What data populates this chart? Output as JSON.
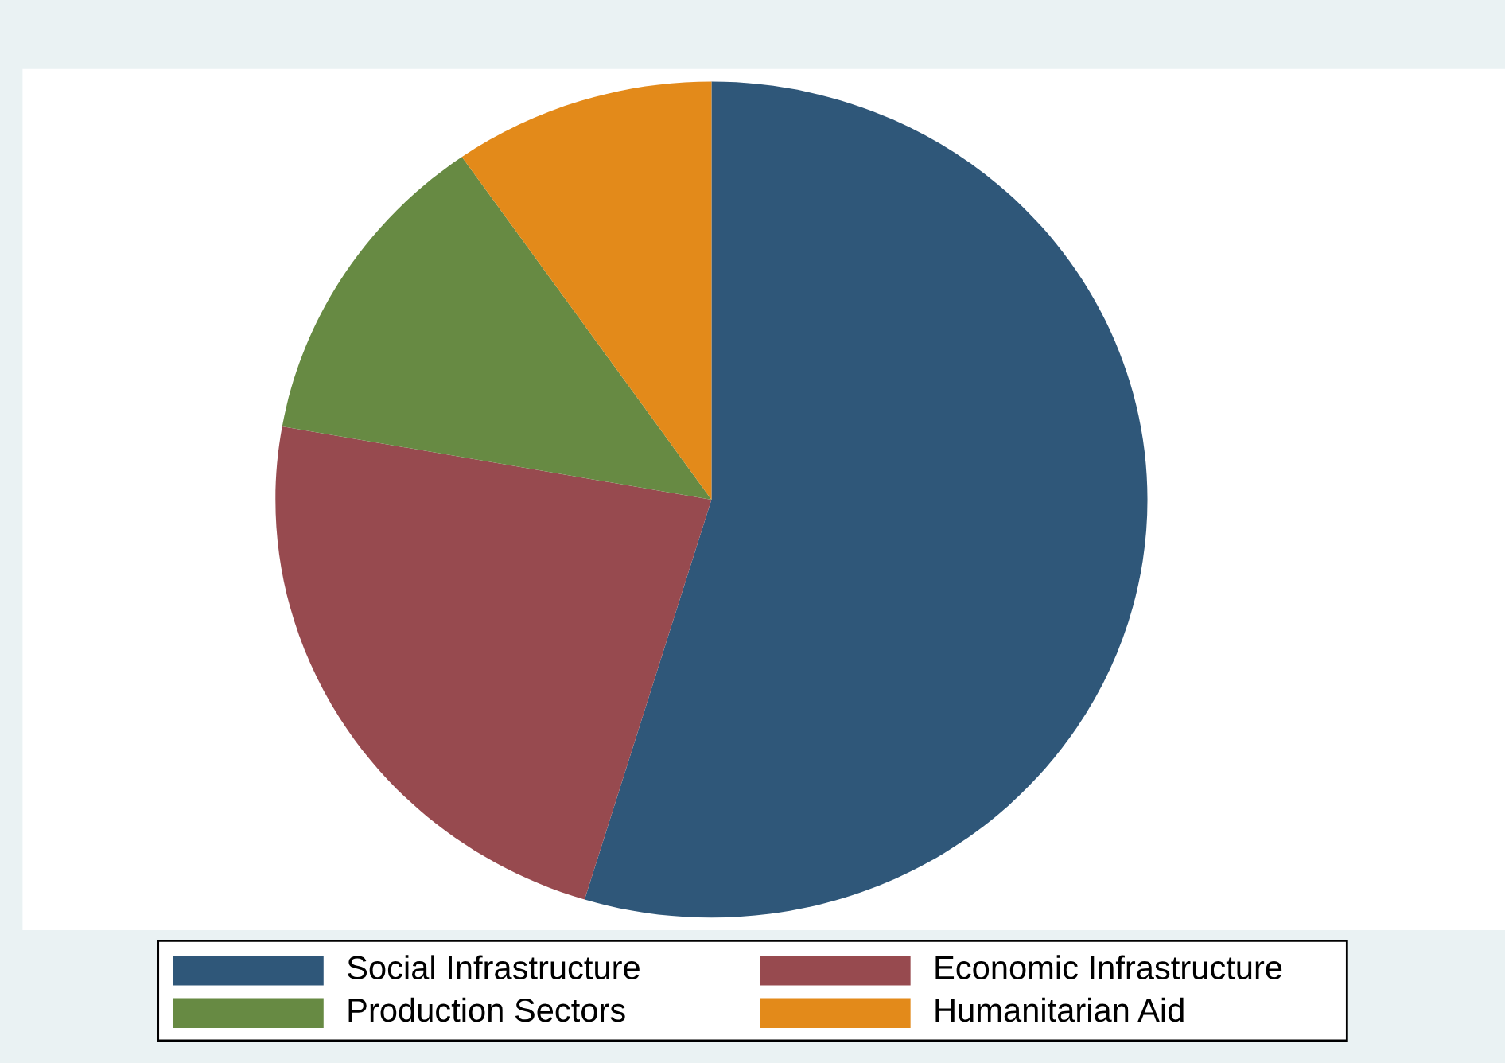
{
  "chart_data": {
    "type": "pie",
    "categories": [
      "Social Infrastructure",
      "Economic Infrastructure",
      "Production Sectors",
      "Humanitarian Aid"
    ],
    "values": [
      54.7,
      23.1,
      12.5,
      9.7
    ],
    "colors": [
      "#2f5779",
      "#974a4f",
      "#678a43",
      "#e38a1a"
    ],
    "legend": "bottom"
  }
}
